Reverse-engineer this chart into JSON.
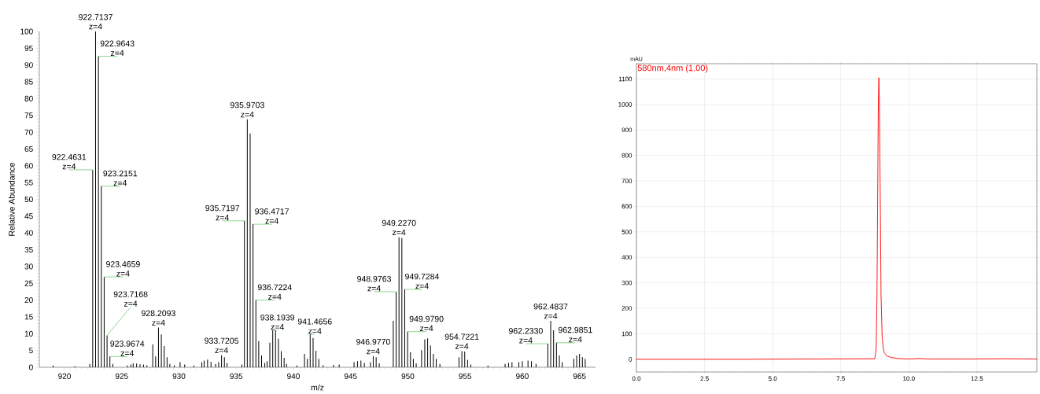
{
  "chart_data": [
    {
      "type": "bar",
      "xlabel": "m/z",
      "ylabel": "Relative Abundance",
      "color": "#000000",
      "xlim": [
        917.8,
        966.4
      ],
      "ylim": [
        0,
        100
      ],
      "xticks": [
        920,
        925,
        930,
        935,
        940,
        945,
        950,
        955,
        960,
        965
      ],
      "yticks": [
        0,
        5,
        10,
        15,
        20,
        25,
        30,
        35,
        40,
        45,
        50,
        55,
        60,
        65,
        70,
        75,
        80,
        85,
        90,
        95,
        100
      ],
      "x": [
        919.0,
        920.9,
        922.21,
        922.4631,
        922.7137,
        922.9643,
        923.2151,
        923.4659,
        923.7168,
        923.9674,
        924.22,
        925.5,
        925.8,
        926.0,
        926.3,
        926.6,
        926.9,
        927.2,
        927.71,
        927.96,
        928.2093,
        928.46,
        928.71,
        928.96,
        929.2,
        929.6,
        930.1,
        930.5,
        931.3,
        932.0,
        932.2,
        932.5,
        932.8,
        933.2,
        933.47,
        933.7205,
        933.97,
        934.2,
        935.5,
        935.7197,
        935.9703,
        936.2209,
        936.4717,
        936.7224,
        936.97,
        937.22,
        937.5,
        937.7,
        937.94,
        938.1939,
        938.44,
        938.69,
        938.94,
        939.19,
        939.4,
        940.3,
        940.97,
        941.22,
        941.4656,
        941.72,
        941.97,
        942.22,
        942.6,
        943.5,
        944.0,
        945.3,
        945.6,
        945.9,
        946.2,
        946.73,
        946.977,
        947.23,
        947.5,
        948.726,
        948.9763,
        949.227,
        949.478,
        949.7284,
        949.979,
        950.23,
        950.48,
        950.73,
        951.2,
        951.48,
        951.73,
        951.98,
        952.23,
        952.48,
        952.8,
        954.47,
        954.7221,
        954.97,
        955.22,
        955.5,
        957.0,
        958.5,
        958.8,
        959.1,
        959.7,
        960.0,
        960.5,
        960.8,
        961.2,
        962.233,
        962.4837,
        962.735,
        962.9851,
        963.24,
        963.49,
        964.5,
        964.75,
        965.0,
        965.25,
        965.5
      ],
      "values": [
        0.5,
        0.3,
        1.0,
        58.8,
        100,
        92.6,
        53.9,
        26.9,
        9.5,
        3.2,
        1.0,
        0.5,
        0.8,
        1.2,
        1.1,
        0.9,
        0.8,
        0.6,
        6.8,
        3.2,
        11.8,
        9.8,
        6.3,
        3.0,
        1.0,
        0.6,
        1.5,
        0.8,
        0.5,
        1.5,
        2.0,
        2.3,
        1.6,
        1.0,
        1.5,
        3.6,
        3.0,
        1.3,
        0.8,
        43.6,
        73.8,
        69.6,
        42.6,
        20.0,
        7.8,
        3.5,
        1.3,
        1.8,
        7.3,
        11.0,
        11.0,
        8.5,
        4.8,
        2.8,
        1.0,
        0.5,
        4.0,
        2.5,
        9.8,
        8.7,
        4.9,
        2.5,
        0.6,
        0.7,
        0.8,
        1.5,
        1.8,
        2.0,
        1.3,
        1.5,
        3.3,
        3.0,
        1.2,
        13.8,
        22.5,
        38.7,
        38.5,
        23.2,
        10.6,
        4.5,
        2.5,
        1.2,
        5.1,
        8.3,
        8.6,
        6.5,
        4.0,
        2.5,
        1.0,
        3.0,
        4.8,
        4.7,
        2.2,
        0.8,
        0.5,
        1.0,
        1.3,
        1.5,
        1.5,
        1.8,
        2.0,
        1.8,
        1.0,
        7.0,
        13.8,
        11.0,
        7.3,
        3.5,
        1.5,
        2.5,
        3.5,
        4.0,
        3.0,
        2.5
      ],
      "annotations": [
        {
          "text": "922.4631 z=4",
          "x": 922.4631,
          "y": 58.8
        },
        {
          "text": "922.7137 z=4",
          "x": 922.7137,
          "y": 100
        },
        {
          "text": "922.9643 z=4",
          "x": 922.9643,
          "y": 92.6
        },
        {
          "text": "923.2151 z=4",
          "x": 923.2151,
          "y": 53.9
        },
        {
          "text": "923.4659 z=4",
          "x": 923.4659,
          "y": 26.9
        },
        {
          "text": "923.7168 z=4",
          "x": 923.7168,
          "y": 9.5
        },
        {
          "text": "923.9674 z=4",
          "x": 923.9674,
          "y": 3.2
        },
        {
          "text": "928.2093 z=4",
          "x": 928.2093,
          "y": 11.8
        },
        {
          "text": "933.7205 z=4",
          "x": 933.7205,
          "y": 3.6
        },
        {
          "text": "935.7197 z=4",
          "x": 935.7197,
          "y": 43.6
        },
        {
          "text": "935.9703 z=4",
          "x": 935.9703,
          "y": 73.8
        },
        {
          "text": "936.4717 z=4",
          "x": 936.4717,
          "y": 42.6
        },
        {
          "text": "936.7224 z=4",
          "x": 936.7224,
          "y": 20.0
        },
        {
          "text": "938.1939 z=4",
          "x": 938.1939,
          "y": 11.0
        },
        {
          "text": "941.4656 z=4",
          "x": 941.4656,
          "y": 9.8
        },
        {
          "text": "946.9770 z=4",
          "x": 946.977,
          "y": 3.3
        },
        {
          "text": "948.9763 z=4",
          "x": 948.9763,
          "y": 22.5
        },
        {
          "text": "949.2270 z=4",
          "x": 949.227,
          "y": 38.7
        },
        {
          "text": "949.7284 z=4",
          "x": 949.7284,
          "y": 23.2
        },
        {
          "text": "949.9790 z=4",
          "x": 949.979,
          "y": 10.6
        },
        {
          "text": "954.7221 z=4",
          "x": 954.7221,
          "y": 4.8
        },
        {
          "text": "962.2330 z=4",
          "x": 962.233,
          "y": 7.0
        },
        {
          "text": "962.4837 z=4",
          "x": 962.4837,
          "y": 13.8
        },
        {
          "text": "962.9851 z=4",
          "x": 962.9851,
          "y": 7.3
        }
      ]
    },
    {
      "type": "line",
      "ylabel": "mAU",
      "grid": true,
      "xlim": [
        0,
        14.7
      ],
      "ylim": [
        -50,
        1160
      ],
      "xticks": [
        {
          "value": 0,
          "label": "0.0"
        },
        {
          "value": 2.5,
          "label": "2.5"
        },
        {
          "value": 5,
          "label": "5.0"
        },
        {
          "value": 7.5,
          "label": "7.5"
        },
        {
          "value": 10,
          "label": "10.0"
        },
        {
          "value": 12.5,
          "label": "12.5"
        }
      ],
      "yticks": [
        0,
        100,
        200,
        300,
        400,
        500,
        600,
        700,
        800,
        900,
        1000,
        1100
      ],
      "series": [
        {
          "name": "580nm,4nm (1.00)",
          "color": "#ff0000",
          "x": [
            0,
            4.0,
            8.75,
            8.8,
            8.83,
            8.86,
            8.88,
            8.9,
            8.92,
            8.95,
            8.98,
            9.02,
            9.06,
            9.1,
            9.2,
            9.35,
            9.6,
            10.0,
            10.4,
            10.7,
            12.0,
            13.5,
            14.7
          ],
          "values": [
            0,
            0,
            2,
            40,
            250,
            700,
            1000,
            1105,
            1000,
            650,
            250,
            90,
            45,
            25,
            12,
            7,
            3,
            1,
            3,
            1,
            1,
            2,
            1
          ]
        }
      ]
    }
  ]
}
